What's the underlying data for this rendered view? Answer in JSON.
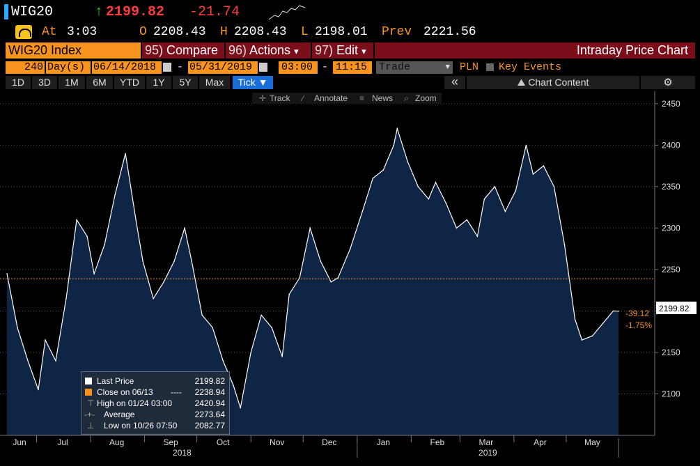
{
  "ticker": {
    "symbol": "WIG20",
    "arrow": "↑",
    "last": "2199.82",
    "change": "-21.74",
    "at_label": "At",
    "time": "3:03",
    "o_label": "O",
    "open": "2208.43",
    "h_label": "H",
    "high": "2208.43",
    "l_label": "L",
    "low": "2198.01",
    "prev_label": "Prev",
    "prev": "2221.56"
  },
  "menubar": {
    "security": "WIG20 Index",
    "compare_num": "95)",
    "compare": "Compare",
    "actions_num": "96)",
    "actions": "Actions",
    "edit_num": "97)",
    "edit": "Edit",
    "dropdown_glyph": "▾",
    "title": "Intraday Price Chart"
  },
  "datebar": {
    "count": "240",
    "unit": "Day(s)",
    "start_date": "06/14/2018",
    "separator": "-",
    "end_date": "05/31/2019",
    "start_time": "03:00",
    "end_time": "11:15",
    "field": "Trade",
    "currency": "PLN",
    "key_events": "Key Events"
  },
  "periods": [
    "1D",
    "3D",
    "1M",
    "6M",
    "YTD",
    "1Y",
    "5Y",
    "Max"
  ],
  "tick_label": "Tick ▼",
  "chart_content": "Chart Content",
  "collapse_glyph": "«",
  "gear_glyph": "⚙",
  "toolbar": {
    "track": "Track",
    "annotate": "Annotate",
    "news": "News",
    "zoom": "Zoom"
  },
  "colors": {
    "orange": "#f7931e",
    "red": "#ff3b3b",
    "green": "#2fd12f",
    "menu_red": "#7a0f1b",
    "area_fill": "#0f2546",
    "price_line": "#ffffff",
    "ref_line": "#f7931e"
  },
  "chart_data": {
    "type": "line",
    "y_ticks": [
      2100,
      2150,
      2200,
      2250,
      2300,
      2350,
      2400,
      2450
    ],
    "ylim": [
      2050,
      2465
    ],
    "x_labels": [
      "Jun",
      "Jul",
      "Aug",
      "Sep",
      "Oct",
      "Nov",
      "Dec",
      "Jan",
      "Feb",
      "Mar",
      "Apr",
      "May"
    ],
    "x_year_labels": [
      "2018",
      "2019"
    ],
    "reference_close": 2238.94,
    "last_price_label": "2199.82",
    "change_labels": [
      "-39.12",
      "-1.75%"
    ],
    "series": [
      {
        "x": [
          "2018-06-14",
          "2018-06-20",
          "2018-06-26",
          "2018-07-02",
          "2018-07-06",
          "2018-07-12",
          "2018-07-18",
          "2018-07-24",
          "2018-07-30",
          "2018-08-03",
          "2018-08-09",
          "2018-08-15",
          "2018-08-21",
          "2018-08-27",
          "2018-08-31",
          "2018-09-06",
          "2018-09-12",
          "2018-09-18",
          "2018-09-24",
          "2018-09-28",
          "2018-10-04",
          "2018-10-10",
          "2018-10-16",
          "2018-10-22",
          "2018-10-26",
          "2018-11-01",
          "2018-11-07",
          "2018-11-13",
          "2018-11-19",
          "2018-11-23",
          "2018-11-29",
          "2018-12-05",
          "2018-12-11",
          "2018-12-17",
          "2018-12-21",
          "2018-12-28",
          "2019-01-04",
          "2019-01-10",
          "2019-01-16",
          "2019-01-22",
          "2019-01-24",
          "2019-01-30",
          "2019-02-05",
          "2019-02-11",
          "2019-02-15",
          "2019-02-21",
          "2019-02-27",
          "2019-03-05",
          "2019-03-11",
          "2019-03-15",
          "2019-03-21",
          "2019-03-27",
          "2019-04-02",
          "2019-04-08",
          "2019-04-12",
          "2019-04-18",
          "2019-04-24",
          "2019-04-30",
          "2019-05-06",
          "2019-05-10",
          "2019-05-16",
          "2019-05-22",
          "2019-05-28",
          "2019-05-31"
        ],
        "y": [
          2245,
          2180,
          2140,
          2105,
          2165,
          2140,
          2215,
          2310,
          2290,
          2245,
          2280,
          2340,
          2390,
          2310,
          2260,
          2215,
          2235,
          2260,
          2300,
          2260,
          2195,
          2180,
          2140,
          2110,
          2083,
          2150,
          2195,
          2180,
          2145,
          2220,
          2240,
          2300,
          2260,
          2235,
          2240,
          2275,
          2320,
          2360,
          2370,
          2400,
          2420,
          2380,
          2350,
          2335,
          2355,
          2330,
          2300,
          2310,
          2290,
          2335,
          2350,
          2320,
          2345,
          2400,
          2365,
          2375,
          2350,
          2280,
          2190,
          2165,
          2170,
          2185,
          2200,
          2199.82
        ]
      }
    ]
  },
  "legend": {
    "last_price_label": "Last Price",
    "last_price_value": "2199.82",
    "close_label": "Close on 06/13",
    "close_dash": "----",
    "close_value": "2238.94",
    "high_label": "High on 01/24 03:00",
    "high_value": "2420.94",
    "average_label": "Average",
    "average_value": "2273.64",
    "low_label": "Low on 10/26 07:50",
    "low_value": "2082.77"
  }
}
